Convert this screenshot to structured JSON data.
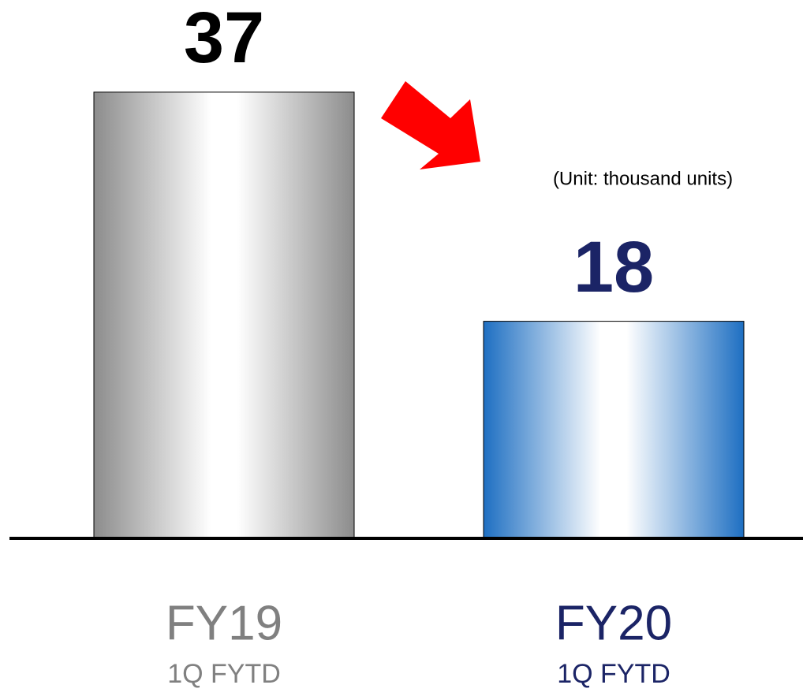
{
  "chart_data": {
    "type": "bar",
    "categories": [
      "FY19",
      "FY20"
    ],
    "category_sublabels": [
      "1Q FYTD",
      "1Q FYTD"
    ],
    "values": [
      37,
      18
    ],
    "colors": [
      "#8c8c8c",
      "#1e6fc2"
    ],
    "label_colors": [
      "#000000",
      "#1b2466"
    ],
    "category_label_colors": [
      "#808080",
      "#1b2466"
    ],
    "annotation": "(Unit: thousand units)",
    "ylim": [
      0,
      40
    ]
  }
}
